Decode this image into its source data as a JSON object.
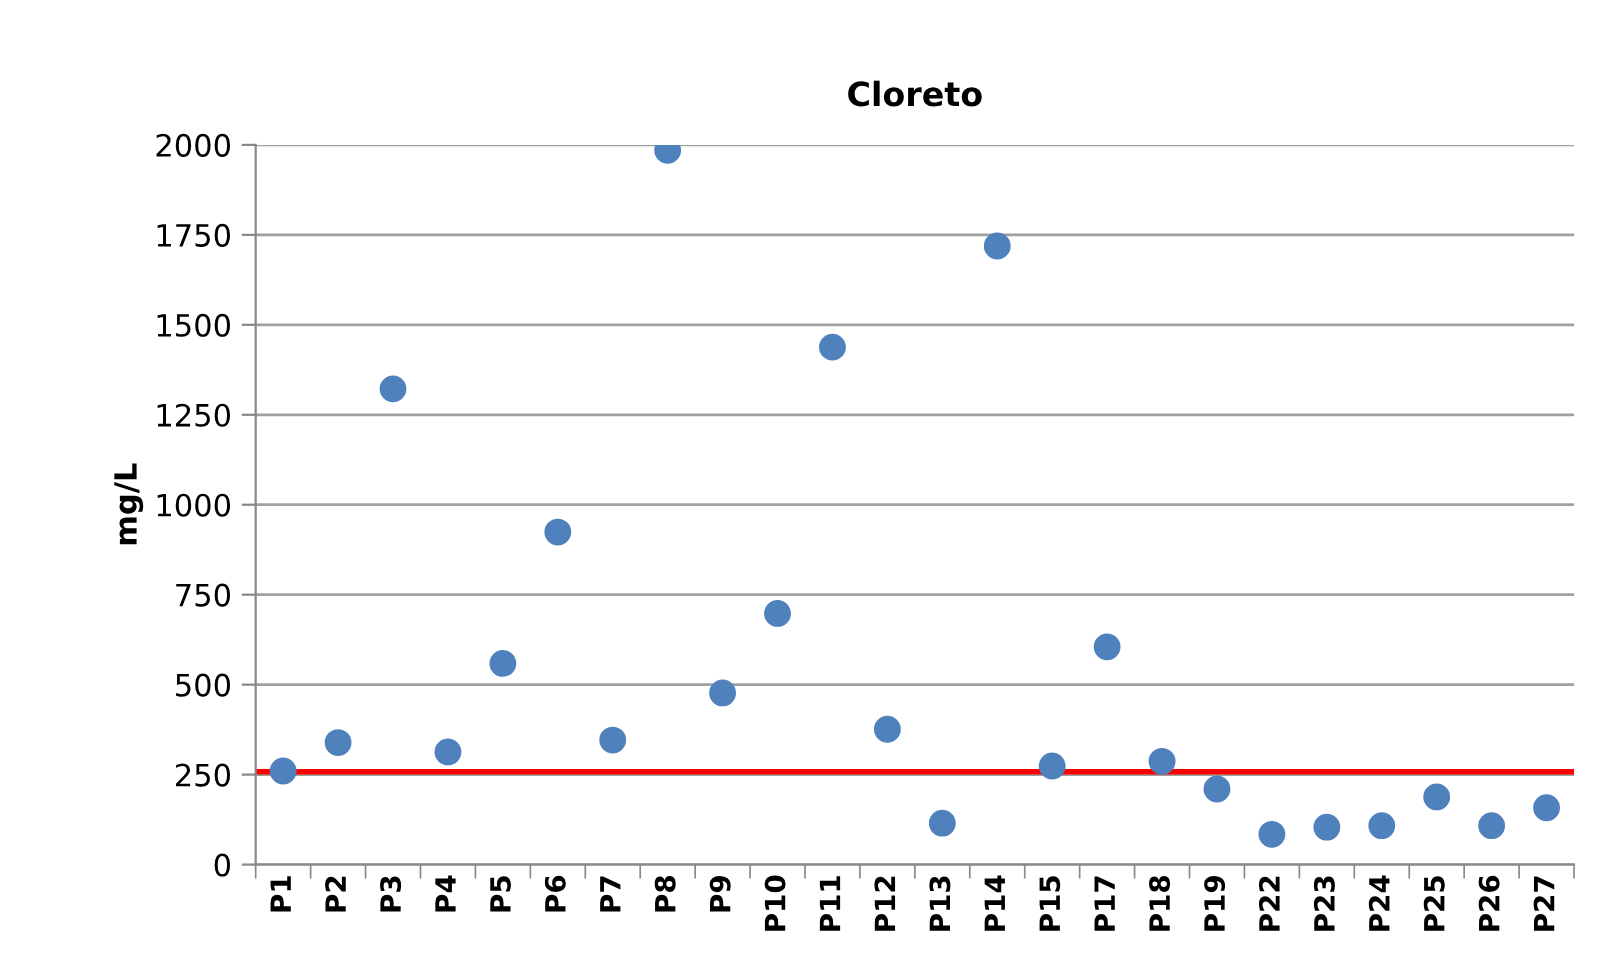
{
  "chart_data": {
    "type": "scatter",
    "title": "Cloreto",
    "ylabel": "mg/L",
    "categories": [
      "P1",
      "P2",
      "P3",
      "P4",
      "P5",
      "P6",
      "P7",
      "P8",
      "P9",
      "P10",
      "P11",
      "P12",
      "P13",
      "P14",
      "P15",
      "P17",
      "P18",
      "P19",
      "P22",
      "P23",
      "P24",
      "P25",
      "P26",
      "P27"
    ],
    "series": [
      {
        "color": "#4f81bd",
        "values": [
          260,
          339,
          1322,
          313,
          559,
          924,
          346,
          1985,
          477,
          698,
          1438,
          376,
          115,
          1719,
          274,
          605,
          287,
          210,
          84,
          104,
          108,
          188,
          108,
          158
        ]
      }
    ],
    "ylim": [
      0,
      2000
    ],
    "yticks": [
      0,
      250,
      500,
      750,
      1000,
      1250,
      1500,
      1750,
      2000
    ],
    "ref_lines": [
      {
        "axis": "y",
        "value": 258,
        "color": "#ff0000",
        "line_style": "solid"
      }
    ],
    "grid": "y",
    "marker": "circle",
    "legend": false
  }
}
